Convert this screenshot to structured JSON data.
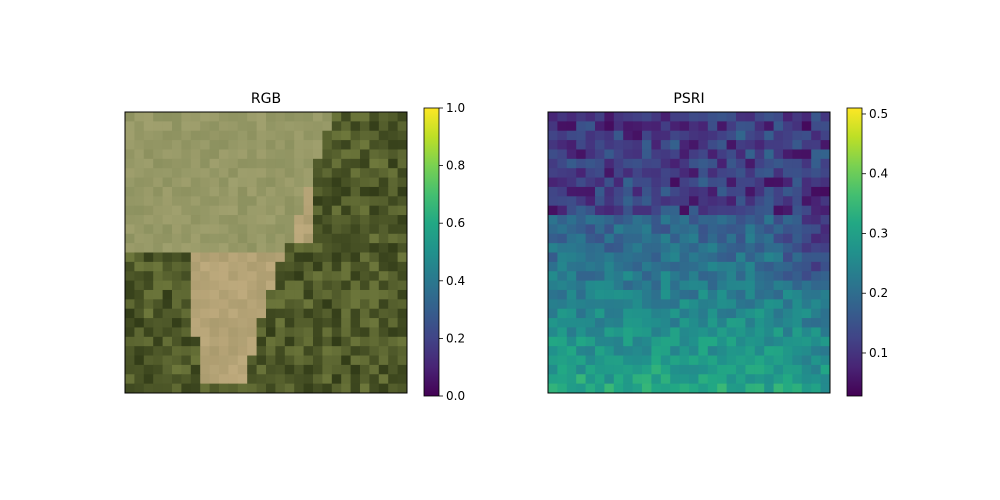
{
  "chart_data": [
    {
      "type": "heatmap",
      "title": "RGB",
      "grid": false,
      "colorbar": {
        "colormap": "viridis",
        "range": [
          0.0,
          1.0
        ],
        "ticks": [
          0.0,
          0.2,
          0.4,
          0.6,
          0.8,
          1.0
        ],
        "tick_labels": [
          "0.0",
          "0.2",
          "0.4",
          "0.6",
          "0.8",
          "1.0"
        ]
      }
    },
    {
      "type": "heatmap",
      "title": "PSRI",
      "grid": false,
      "colorbar": {
        "colormap": "viridis",
        "range": [
          0.028,
          0.51
        ],
        "ticks": [
          0.1,
          0.2,
          0.3,
          0.4,
          0.5
        ],
        "tick_labels": [
          "0.1",
          "0.2",
          "0.3",
          "0.4",
          "0.5"
        ]
      }
    }
  ]
}
